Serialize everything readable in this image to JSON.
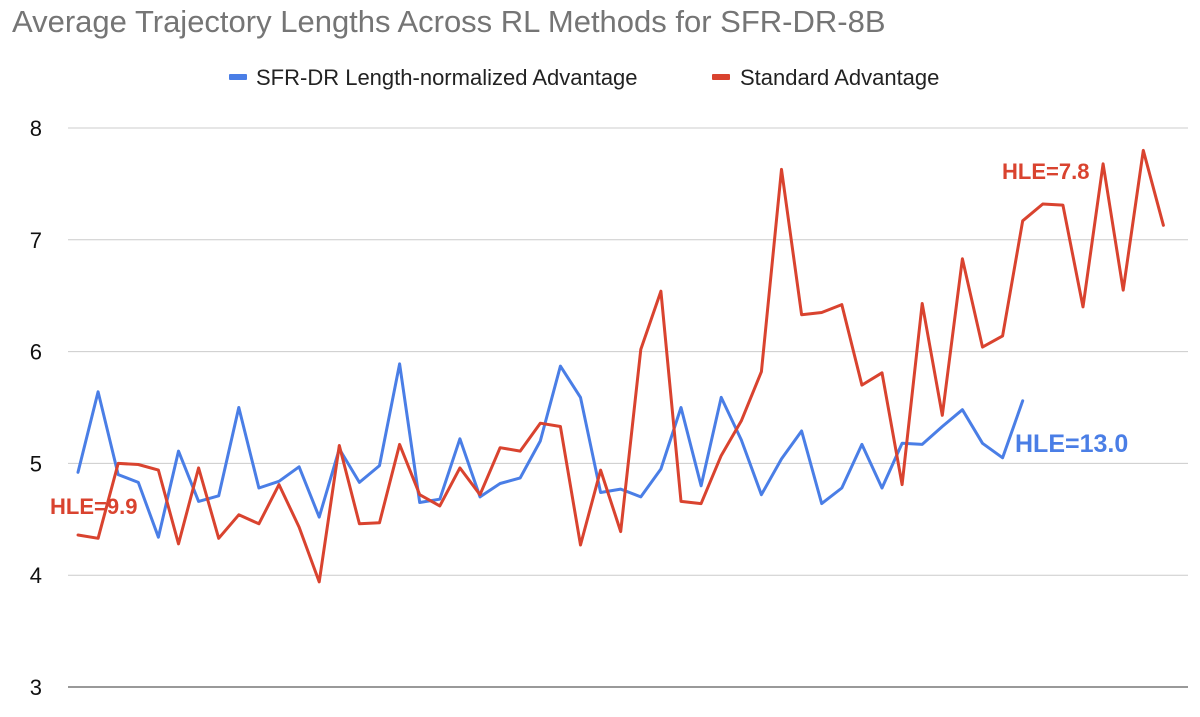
{
  "chart_data": {
    "type": "line",
    "title": "Average Trajectory Lengths Across RL Methods for SFR-DR-8B",
    "xlabel": "",
    "ylabel": "",
    "ylim": [
      3,
      8
    ],
    "yticks": [
      3,
      4,
      5,
      6,
      7,
      8
    ],
    "grid": true,
    "legend_position": "top",
    "series": [
      {
        "name": "SFR-DR Length-normalized Advantage",
        "color": "#4a7ee6",
        "values": [
          4.92,
          5.64,
          4.9,
          4.83,
          4.34,
          5.11,
          4.66,
          4.71,
          5.5,
          4.78,
          4.84,
          4.97,
          4.52,
          5.13,
          4.83,
          4.98,
          5.89,
          4.65,
          4.68,
          5.22,
          4.7,
          4.82,
          4.87,
          5.2,
          5.87,
          5.59,
          4.74,
          4.77,
          4.7,
          4.95,
          5.5,
          4.8,
          5.59,
          5.21,
          4.72,
          5.04,
          5.29,
          4.64,
          4.78,
          5.17,
          4.78,
          5.18,
          5.17,
          5.33,
          5.48,
          5.18,
          5.05,
          5.56
        ]
      },
      {
        "name": "Standard Advantage",
        "color": "#d9432f",
        "values": [
          4.36,
          4.33,
          5.0,
          4.99,
          4.94,
          4.28,
          4.96,
          4.33,
          4.54,
          4.46,
          4.81,
          4.43,
          3.94,
          5.16,
          4.46,
          4.47,
          5.17,
          4.72,
          4.62,
          4.96,
          4.72,
          5.14,
          5.11,
          5.36,
          5.33,
          4.27,
          4.94,
          4.39,
          6.02,
          6.54,
          4.66,
          4.64,
          5.07,
          5.38,
          5.82,
          7.63,
          6.33,
          6.35,
          6.42,
          5.7,
          5.81,
          4.81,
          6.43,
          5.43,
          6.83,
          6.04,
          6.14,
          7.17,
          7.32,
          7.31,
          6.4,
          7.68,
          6.55,
          7.8,
          7.13
        ]
      }
    ],
    "annotations": [
      {
        "text": "HLE=9.9",
        "color": "#d9432f"
      },
      {
        "text": "HLE=7.8",
        "color": "#d9432f"
      },
      {
        "text": "HLE=13.0",
        "color": "#4a7ee6"
      }
    ]
  }
}
